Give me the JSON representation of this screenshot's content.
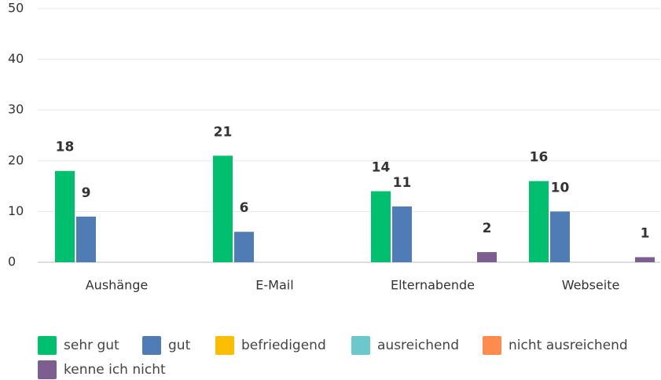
{
  "chart_data": {
    "type": "bar",
    "categories": [
      "Aushänge",
      "E-Mail",
      "Elternabende",
      "Webseite"
    ],
    "series": [
      {
        "name": "sehr gut",
        "color": "#00bf6f",
        "values": [
          18,
          21,
          14,
          16
        ]
      },
      {
        "name": "gut",
        "color": "#507cb6",
        "values": [
          9,
          6,
          11,
          10
        ]
      },
      {
        "name": "befriedigend",
        "color": "#f9be00",
        "values": [
          0,
          0,
          0,
          0
        ]
      },
      {
        "name": "ausreichend",
        "color": "#6bc8cd",
        "values": [
          0,
          0,
          0,
          0
        ]
      },
      {
        "name": "nicht ausreichend",
        "color": "#ff8b4f",
        "values": [
          0,
          0,
          0,
          0
        ]
      },
      {
        "name": "kenne ich nicht",
        "color": "#7d5e90",
        "values": [
          0,
          0,
          2,
          1
        ]
      }
    ],
    "ylim": [
      0,
      50
    ],
    "yticks": [
      0,
      10,
      20,
      30,
      40,
      50
    ],
    "grid": true,
    "legend": "bottom"
  }
}
